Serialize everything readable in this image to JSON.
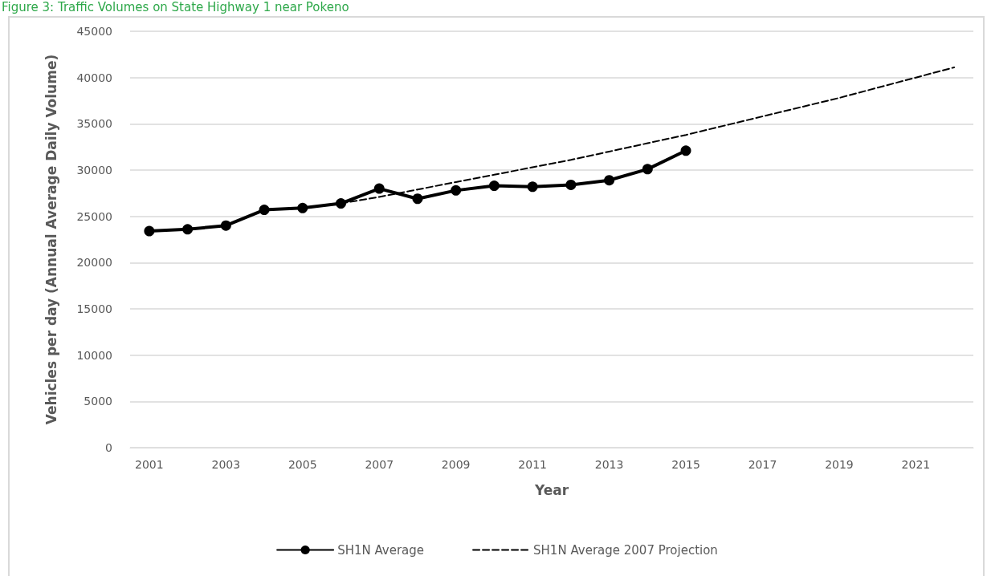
{
  "chart_data": {
    "type": "line",
    "title": "Figure 3: Traffic Volumes on State Highway 1 near Pokeno",
    "xlabel": "Year",
    "ylabel": "Vehicles per day (Annual Average Daily Volume)",
    "categories": [
      "2001",
      null,
      "2003",
      null,
      "2005",
      null,
      "2007",
      null,
      "2009",
      null,
      "2011",
      null,
      "2013",
      null,
      "2015",
      null,
      "2017",
      null,
      "2019",
      null,
      "2021",
      null
    ],
    "series": [
      {
        "name": "SH1N Average",
        "color": "#000000",
        "marker": "circle",
        "line_style": "solid",
        "values": [
          23400,
          23600,
          24000,
          25700,
          25900,
          26400,
          28000,
          26900,
          27800,
          28300,
          28200,
          28400,
          28900,
          30100,
          32100,
          null,
          null,
          null,
          null,
          null,
          null,
          null
        ]
      },
      {
        "name": "SH1N Average 2007 Projection",
        "color": "#000000",
        "marker": "none",
        "line_style": "dashed",
        "values": [
          null,
          null,
          null,
          null,
          null,
          26400,
          27100,
          27900,
          28700,
          29500,
          30300,
          31100,
          32000,
          32900,
          33800,
          34800,
          35800,
          36800,
          37800,
          38900,
          40000,
          41100
        ]
      }
    ],
    "ylim": [
      0,
      45000
    ],
    "yticks": [
      0,
      5000,
      10000,
      15000,
      20000,
      25000,
      30000,
      35000,
      40000,
      45000
    ],
    "grid": "y",
    "legend": "bottom"
  }
}
